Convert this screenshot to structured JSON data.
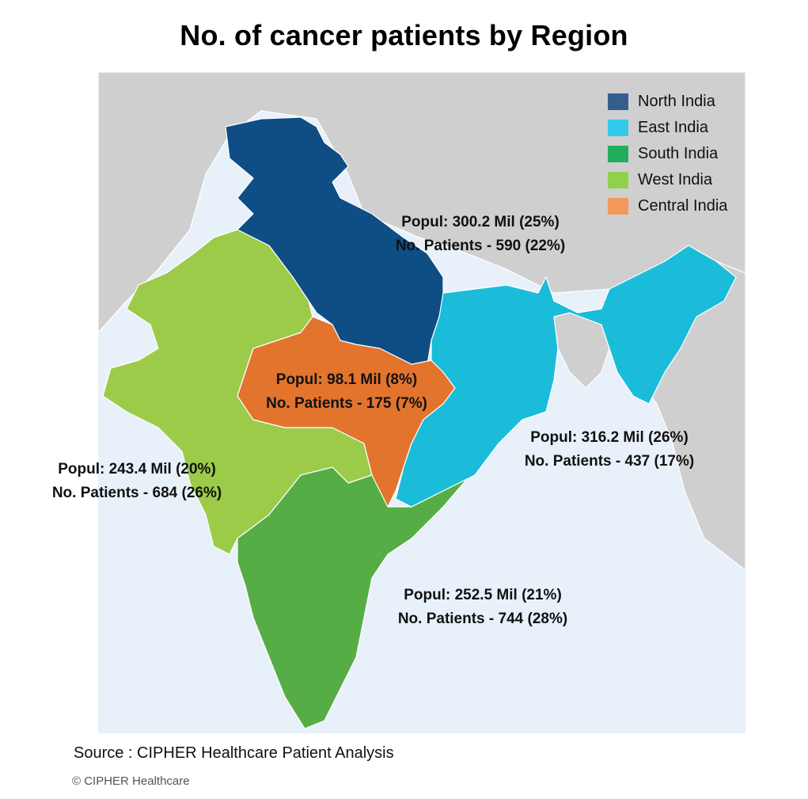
{
  "title": "No. of cancer patients by Region",
  "legend": [
    {
      "label": "North India",
      "color": "#355e8e"
    },
    {
      "label": "East India",
      "color": "#33c9ec"
    },
    {
      "label": "South India",
      "color": "#22ad5c"
    },
    {
      "label": "West India",
      "color": "#8fd14f"
    },
    {
      "label": "Central India",
      "color": "#f0995a"
    }
  ],
  "regions": {
    "north": {
      "popul": "Popul: 300.2 Mil (25%)",
      "patients": "No. Patients - 590 (22%)"
    },
    "central": {
      "popul": "Popul: 98.1 Mil (8%)",
      "patients": "No. Patients - 175 (7%)"
    },
    "east": {
      "popul": "Popul: 316.2 Mil (26%)",
      "patients": "No. Patients - 437 (17%)"
    },
    "west": {
      "popul": "Popul: 243.4 Mil (20%)",
      "patients": "No. Patients - 684 (26%)"
    },
    "south": {
      "popul": "Popul: 252.5 Mil (21%)",
      "patients": "No. Patients - 744 (28%)"
    }
  },
  "map_colors": {
    "north": "#0f4d85",
    "east": "#1bbcd9",
    "south": "#56ad45",
    "west": "#9ccb4a",
    "central": "#e2742e",
    "neighbor_land": "#cfcfcf",
    "sea": "#e8f1fa"
  },
  "source": "Source : CIPHER Healthcare Patient Analysis",
  "copyright": "© CIPHER Healthcare"
}
